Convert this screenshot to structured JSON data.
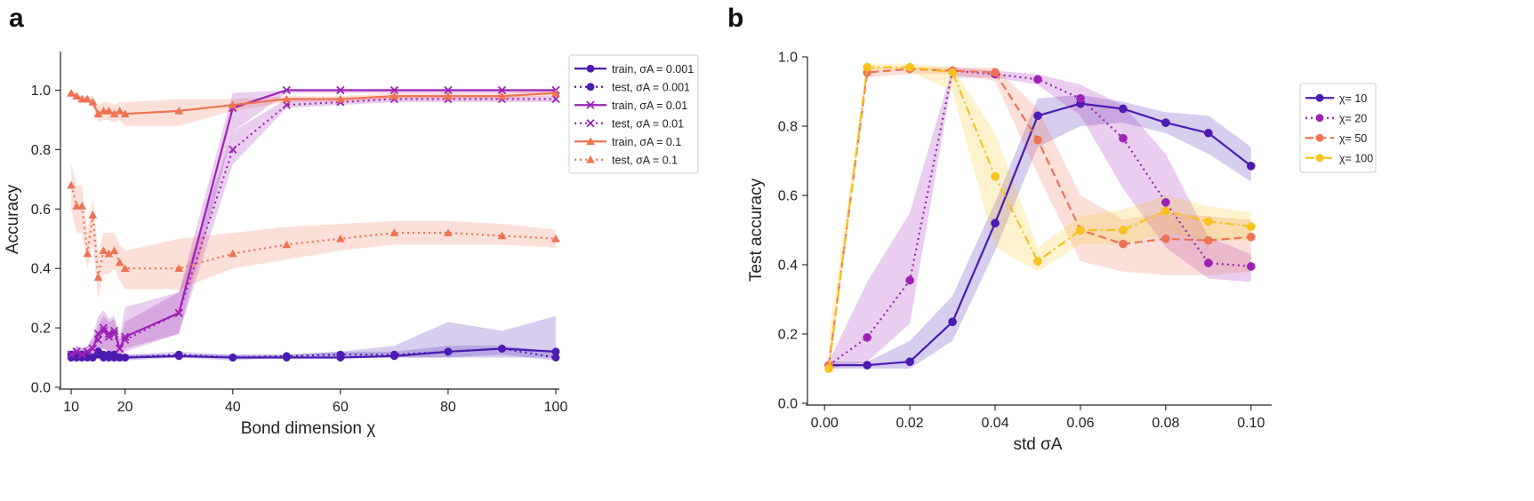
{
  "panels": {
    "a": {
      "label": "a"
    },
    "b": {
      "label": "b"
    }
  },
  "colors": {
    "purple_dark": "#4b1bb2",
    "purple": "#9b22b5",
    "orange": "#ee7352",
    "yellow": "#f7c21b"
  },
  "chart_data": [
    {
      "type": "line",
      "panel": "a",
      "title": "",
      "xlabel": "Bond dimension χ",
      "ylabel": "Accuracy",
      "xlim": [
        8,
        100
      ],
      "ylim": [
        0,
        1.13
      ],
      "xticks": [
        10,
        20,
        40,
        60,
        80,
        100
      ],
      "xtick_labels": [
        "10",
        "20",
        "40",
        "60",
        "80",
        "100"
      ],
      "yticks": [
        0.0,
        0.2,
        0.4,
        0.6,
        0.8,
        1.0
      ],
      "ytick_labels": [
        "0.0",
        "0.2",
        "0.4",
        "0.6",
        "0.8",
        "1.0"
      ],
      "grid": false,
      "legend_position": "outside-right",
      "series": [
        {
          "name": "train, σA = 0.001",
          "color": "#4b1bb2",
          "dash": "solid",
          "marker": "circle",
          "x": [
            10,
            11,
            12,
            13,
            14,
            15,
            16,
            17,
            18,
            19,
            20,
            30,
            40,
            50,
            60,
            70,
            80,
            90,
            100
          ],
          "y": [
            0.11,
            0.11,
            0.1,
            0.11,
            0.1,
            0.12,
            0.11,
            0.1,
            0.11,
            0.1,
            0.1,
            0.105,
            0.1,
            0.1,
            0.1,
            0.105,
            0.12,
            0.13,
            0.12
          ],
          "band_lo": [
            0.1,
            0.1,
            0.1,
            0.1,
            0.1,
            0.1,
            0.1,
            0.1,
            0.1,
            0.1,
            0.1,
            0.1,
            0.1,
            0.1,
            0.1,
            0.1,
            0.1,
            0.1,
            0.1
          ],
          "band_hi": [
            0.12,
            0.12,
            0.11,
            0.12,
            0.11,
            0.14,
            0.12,
            0.11,
            0.12,
            0.11,
            0.11,
            0.11,
            0.11,
            0.11,
            0.12,
            0.14,
            0.22,
            0.19,
            0.24
          ]
        },
        {
          "name": "test, σA = 0.001",
          "color": "#4b1bb2",
          "dash": "dotted",
          "marker": "circle",
          "x": [
            10,
            11,
            12,
            13,
            14,
            15,
            16,
            17,
            18,
            19,
            20,
            30,
            40,
            50,
            60,
            70,
            80,
            90,
            100
          ],
          "y": [
            0.1,
            0.1,
            0.11,
            0.1,
            0.1,
            0.11,
            0.1,
            0.11,
            0.1,
            0.1,
            0.1,
            0.11,
            0.1,
            0.105,
            0.11,
            0.11,
            0.12,
            0.13,
            0.1
          ],
          "band_lo": [
            0.09,
            0.09,
            0.1,
            0.09,
            0.09,
            0.1,
            0.09,
            0.1,
            0.09,
            0.09,
            0.09,
            0.1,
            0.09,
            0.1,
            0.1,
            0.1,
            0.1,
            0.11,
            0.09
          ],
          "band_hi": [
            0.11,
            0.11,
            0.12,
            0.11,
            0.11,
            0.12,
            0.11,
            0.12,
            0.11,
            0.11,
            0.11,
            0.12,
            0.11,
            0.11,
            0.12,
            0.12,
            0.14,
            0.14,
            0.12
          ]
        },
        {
          "name": "train, σA = 0.01",
          "color": "#9b22b5",
          "dash": "solid",
          "marker": "x",
          "x": [
            10,
            11,
            12,
            13,
            14,
            15,
            16,
            17,
            18,
            19,
            20,
            30,
            40,
            50,
            60,
            70,
            80,
            90,
            100
          ],
          "y": [
            0.11,
            0.12,
            0.11,
            0.12,
            0.13,
            0.18,
            0.2,
            0.18,
            0.19,
            0.13,
            0.17,
            0.25,
            0.94,
            1.0,
            1.0,
            1.0,
            1.0,
            1.0,
            1.0
          ],
          "band_lo": [
            0.1,
            0.1,
            0.1,
            0.1,
            0.1,
            0.13,
            0.13,
            0.12,
            0.12,
            0.1,
            0.13,
            0.18,
            0.86,
            0.99,
            0.99,
            0.99,
            0.99,
            0.99,
            0.99
          ],
          "band_hi": [
            0.12,
            0.14,
            0.13,
            0.14,
            0.17,
            0.24,
            0.26,
            0.23,
            0.24,
            0.17,
            0.27,
            0.32,
            0.99,
            1.0,
            1.0,
            1.0,
            1.0,
            1.0,
            1.0
          ]
        },
        {
          "name": "test, σA = 0.01",
          "color": "#9b22b5",
          "dash": "dotted",
          "marker": "x",
          "x": [
            10,
            11,
            12,
            13,
            14,
            15,
            16,
            17,
            18,
            19,
            20,
            30,
            40,
            50,
            60,
            70,
            80,
            90,
            100
          ],
          "y": [
            0.11,
            0.12,
            0.11,
            0.12,
            0.13,
            0.16,
            0.19,
            0.17,
            0.18,
            0.13,
            0.16,
            0.25,
            0.8,
            0.95,
            0.96,
            0.97,
            0.97,
            0.97,
            0.97
          ],
          "band_lo": [
            0.1,
            0.1,
            0.1,
            0.1,
            0.1,
            0.12,
            0.13,
            0.12,
            0.12,
            0.1,
            0.12,
            0.18,
            0.75,
            0.94,
            0.95,
            0.96,
            0.96,
            0.96,
            0.96
          ],
          "band_hi": [
            0.12,
            0.14,
            0.13,
            0.14,
            0.16,
            0.21,
            0.24,
            0.22,
            0.23,
            0.16,
            0.22,
            0.32,
            0.86,
            0.97,
            0.97,
            0.98,
            0.98,
            0.98,
            0.98
          ]
        },
        {
          "name": "train, σA = 0.1",
          "color": "#ee7352",
          "dash": "solid",
          "marker": "triangle",
          "x": [
            10,
            11,
            12,
            13,
            14,
            15,
            16,
            17,
            18,
            19,
            20,
            30,
            40,
            50,
            60,
            70,
            80,
            90,
            100
          ],
          "y": [
            0.99,
            0.98,
            0.97,
            0.97,
            0.96,
            0.92,
            0.93,
            0.93,
            0.92,
            0.93,
            0.92,
            0.93,
            0.95,
            0.97,
            0.97,
            0.98,
            0.98,
            0.98,
            0.99
          ],
          "band_lo": [
            0.98,
            0.97,
            0.96,
            0.96,
            0.94,
            0.89,
            0.9,
            0.9,
            0.89,
            0.9,
            0.88,
            0.88,
            0.93,
            0.96,
            0.96,
            0.97,
            0.97,
            0.97,
            0.98
          ],
          "band_hi": [
            1.0,
            0.99,
            0.98,
            0.98,
            0.98,
            0.95,
            0.96,
            0.96,
            0.95,
            0.96,
            0.96,
            0.97,
            0.97,
            0.98,
            0.98,
            0.99,
            0.99,
            0.99,
            1.0
          ]
        },
        {
          "name": "test, σA = 0.1",
          "color": "#ee7352",
          "dash": "dotted",
          "marker": "triangle",
          "x": [
            10,
            11,
            12,
            13,
            14,
            15,
            16,
            17,
            18,
            19,
            20,
            30,
            40,
            50,
            60,
            70,
            80,
            90,
            100
          ],
          "y": [
            0.68,
            0.61,
            0.61,
            0.45,
            0.58,
            0.37,
            0.46,
            0.45,
            0.46,
            0.42,
            0.4,
            0.4,
            0.45,
            0.48,
            0.5,
            0.52,
            0.52,
            0.51,
            0.5
          ],
          "band_lo": [
            0.6,
            0.52,
            0.52,
            0.4,
            0.48,
            0.3,
            0.38,
            0.38,
            0.4,
            0.36,
            0.33,
            0.33,
            0.4,
            0.43,
            0.46,
            0.48,
            0.48,
            0.48,
            0.47
          ],
          "band_hi": [
            0.75,
            0.68,
            0.68,
            0.52,
            0.64,
            0.45,
            0.52,
            0.52,
            0.52,
            0.48,
            0.46,
            0.5,
            0.52,
            0.54,
            0.55,
            0.56,
            0.56,
            0.55,
            0.53
          ]
        }
      ]
    },
    {
      "type": "line",
      "panel": "b",
      "title": "",
      "xlabel": "std σA",
      "ylabel": "Test accuracy",
      "xlim": [
        -0.004,
        0.104
      ],
      "ylim": [
        0,
        1.0
      ],
      "xticks": [
        0.0,
        0.02,
        0.04,
        0.06,
        0.08,
        0.1
      ],
      "xtick_labels": [
        "0.00",
        "0.02",
        "0.04",
        "0.06",
        "0.08",
        "0.10"
      ],
      "yticks": [
        0.0,
        0.2,
        0.4,
        0.6,
        0.8,
        1.0
      ],
      "ytick_labels": [
        "0.0",
        "0.2",
        "0.4",
        "0.6",
        "0.8",
        "1.0"
      ],
      "grid": false,
      "legend_position": "outside-right",
      "series": [
        {
          "name": "χ= 10",
          "color": "#4b1bb2",
          "dash": "solid",
          "marker": "circle",
          "x": [
            0.001,
            0.01,
            0.02,
            0.03,
            0.04,
            0.05,
            0.06,
            0.07,
            0.08,
            0.09,
            0.1
          ],
          "y": [
            0.11,
            0.11,
            0.12,
            0.235,
            0.52,
            0.83,
            0.865,
            0.85,
            0.81,
            0.78,
            0.685
          ],
          "band_lo": [
            0.1,
            0.1,
            0.1,
            0.18,
            0.44,
            0.74,
            0.8,
            0.81,
            0.78,
            0.72,
            0.64
          ],
          "band_hi": [
            0.12,
            0.12,
            0.18,
            0.31,
            0.58,
            0.88,
            0.89,
            0.87,
            0.84,
            0.83,
            0.74
          ]
        },
        {
          "name": "χ= 20",
          "color": "#9b22b5",
          "dash": "dotted",
          "marker": "circle",
          "x": [
            0.001,
            0.01,
            0.02,
            0.03,
            0.04,
            0.05,
            0.06,
            0.07,
            0.08,
            0.09,
            0.1
          ],
          "y": [
            0.11,
            0.19,
            0.355,
            0.96,
            0.95,
            0.935,
            0.88,
            0.765,
            0.58,
            0.405,
            0.395
          ],
          "band_lo": [
            0.1,
            0.12,
            0.23,
            0.94,
            0.94,
            0.92,
            0.83,
            0.62,
            0.45,
            0.36,
            0.35
          ],
          "band_hi": [
            0.12,
            0.35,
            0.55,
            0.97,
            0.96,
            0.95,
            0.92,
            0.86,
            0.72,
            0.48,
            0.43
          ]
        },
        {
          "name": "χ= 50",
          "color": "#ee7352",
          "dash": "dashed",
          "marker": "circle",
          "x": [
            0.001,
            0.01,
            0.02,
            0.03,
            0.04,
            0.05,
            0.06,
            0.07,
            0.08,
            0.09,
            0.1
          ],
          "y": [
            0.11,
            0.955,
            0.965,
            0.96,
            0.955,
            0.76,
            0.5,
            0.46,
            0.475,
            0.47,
            0.48
          ],
          "band_lo": [
            0.1,
            0.94,
            0.95,
            0.95,
            0.93,
            0.66,
            0.41,
            0.38,
            0.37,
            0.37,
            0.38
          ],
          "band_hi": [
            0.12,
            0.97,
            0.97,
            0.97,
            0.97,
            0.85,
            0.6,
            0.53,
            0.55,
            0.54,
            0.53
          ]
        },
        {
          "name": "χ= 100",
          "color": "#f7c21b",
          "dash": "dashdot",
          "marker": "circle",
          "x": [
            0.001,
            0.01,
            0.02,
            0.03,
            0.04,
            0.05,
            0.06,
            0.07,
            0.08,
            0.09,
            0.1
          ],
          "y": [
            0.1,
            0.97,
            0.97,
            0.955,
            0.655,
            0.41,
            0.5,
            0.5,
            0.555,
            0.525,
            0.51
          ],
          "band_lo": [
            0.09,
            0.96,
            0.96,
            0.9,
            0.45,
            0.38,
            0.46,
            0.46,
            0.49,
            0.47,
            0.47
          ],
          "band_hi": [
            0.2,
            0.98,
            0.98,
            0.97,
            0.78,
            0.45,
            0.54,
            0.56,
            0.6,
            0.57,
            0.55
          ]
        }
      ]
    }
  ]
}
